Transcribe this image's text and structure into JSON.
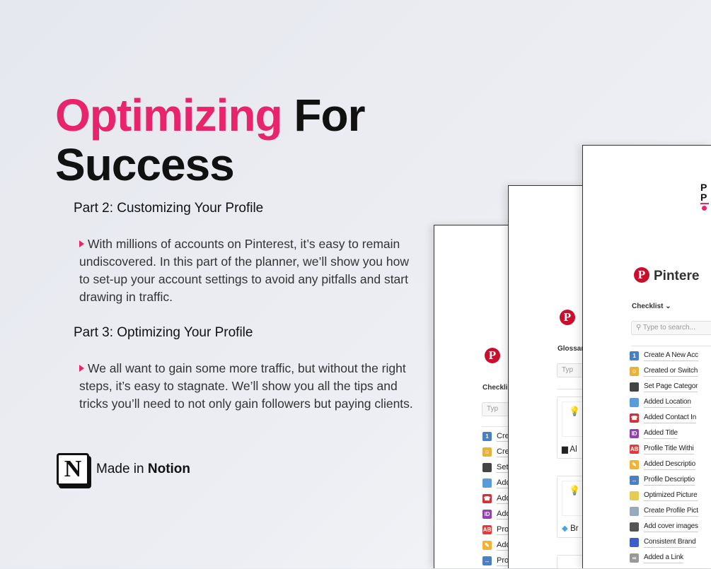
{
  "hero": {
    "title_accent": "Optimizing",
    "title_rest": "For",
    "title_line2": "Success"
  },
  "sections": [
    {
      "heading": "Part 2: Customizing Your Profile",
      "text": "With millions of accounts on Pinterest, it’s easy to remain undiscovered. In this part of the planner, we’ll show you how to set-up your account settings to avoid any pitfalls and start drawing in traffic."
    },
    {
      "heading": "Part 3: Optimizing Your Profile",
      "text": "We all want to gain some more traffic, but without the right steps, it’s easy to stagnate. We’ll show you all the tips and tricks you’ll need to not only gain followers but paying clients."
    }
  ],
  "badge": {
    "prefix": "Made in ",
    "brand": "Notion",
    "logo_letter": "N"
  },
  "colors": {
    "accent": "#e8246a",
    "pinterest": "#c8102e"
  },
  "card_front": {
    "brand": "P\nP",
    "title": "Pintere",
    "view": "Checklist ⌄",
    "search_placeholder": "Type to search...",
    "items": [
      {
        "icon": "keycap-1-icon",
        "color": "#4a7fc1",
        "glyph": "1",
        "label": "Create A New Acc"
      },
      {
        "icon": "person-icon",
        "color": "#e7b23c",
        "glyph": "☺",
        "label": "Created or Switch"
      },
      {
        "icon": "card-file-icon",
        "color": "#444",
        "glyph": "",
        "label": "Set Page Categor"
      },
      {
        "icon": "map-icon",
        "color": "#5a9bd8",
        "glyph": "",
        "label": "Added Location"
      },
      {
        "icon": "telephone-icon",
        "color": "#d0323a",
        "glyph": "☎",
        "label": "Added Contact In"
      },
      {
        "icon": "id-icon",
        "color": "#8e44ad",
        "glyph": "ID",
        "label": "Added Title"
      },
      {
        "icon": "ab-icon",
        "color": "#e03a3a",
        "glyph": "AB",
        "label": "Profile Title Withi"
      },
      {
        "icon": "pencil-icon",
        "color": "#f2b233",
        "glyph": "✎",
        "label": "Added Descriptio"
      },
      {
        "icon": "left-right-arrow-icon",
        "color": "#4a7fc1",
        "glyph": "↔",
        "label": "Profile Descriptio"
      },
      {
        "icon": "id-card-icon",
        "color": "#e5cd55",
        "glyph": "",
        "label": "Optimized Picture"
      },
      {
        "icon": "ruler-icon",
        "color": "#9ab",
        "glyph": "",
        "label": "Create Profile Pict"
      },
      {
        "icon": "camera-flash-icon",
        "color": "#555",
        "glyph": "",
        "label": "Add cover images"
      },
      {
        "icon": "paintbrush-icon",
        "color": "#3b5fc4",
        "glyph": "",
        "label": "Consistent Brand"
      },
      {
        "icon": "link-icon",
        "color": "#999",
        "glyph": "∞",
        "label": "Added a Link"
      }
    ]
  },
  "card_middle": {
    "view": "Glossar",
    "search_placeholder": "Typ",
    "cards": [
      {
        "icon": "laptop-icon",
        "label": "Al"
      },
      {
        "icon": "gem-icon",
        "label": "Br"
      }
    ]
  },
  "card_back": {
    "view": "Checkli",
    "search_placeholder": "Typ",
    "items": [
      "Cre",
      "Cre",
      "Set",
      "Add",
      "Add",
      "Add",
      "Pro",
      "Add",
      "Pro"
    ]
  }
}
